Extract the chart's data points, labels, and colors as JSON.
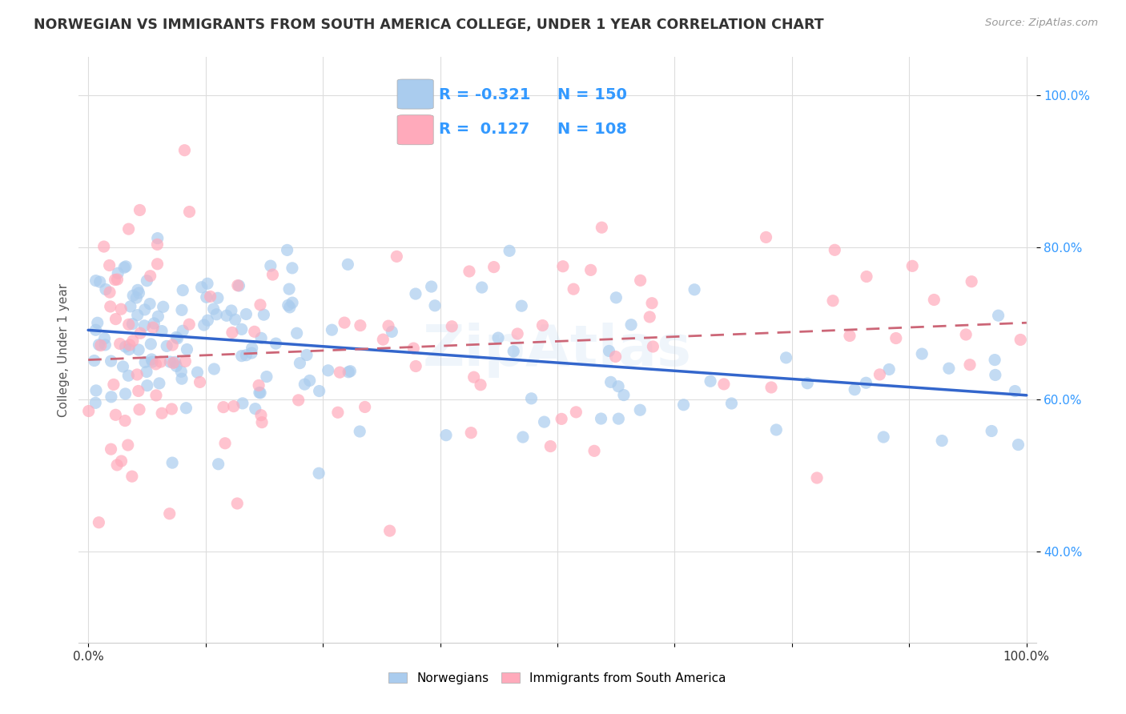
{
  "title": "NORWEGIAN VS IMMIGRANTS FROM SOUTH AMERICA COLLEGE, UNDER 1 YEAR CORRELATION CHART",
  "source": "Source: ZipAtlas.com",
  "ylabel": "College, Under 1 year",
  "norwegian_R": -0.321,
  "norwegian_N": 150,
  "immigrant_R": 0.127,
  "immigrant_N": 108,
  "norwegian_color": "#aaccee",
  "immigrant_color": "#ffaabb",
  "norwegian_line_color": "#3366cc",
  "immigrant_line_color": "#cc6677",
  "background_color": "#ffffff",
  "grid_color": "#dddddd",
  "title_color": "#333333",
  "source_color": "#999999",
  "tick_color_x": "#333333",
  "tick_color_y": "#3399ff",
  "watermark": "ZipAtlas",
  "watermark_color": "#aaccee",
  "legend_text_color": "#3399ff"
}
